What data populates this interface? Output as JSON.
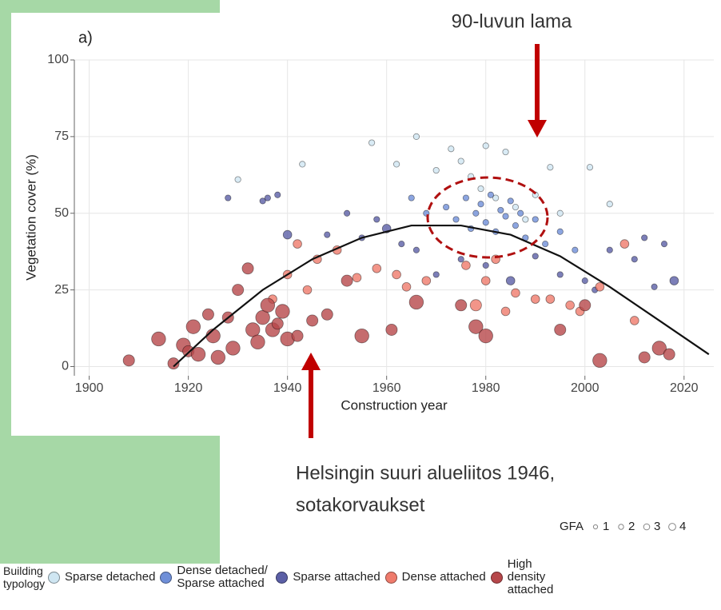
{
  "chart_data": {
    "type": "scatter",
    "panel_label": "a)",
    "xlabel": "Construction year",
    "ylabel": "Vegetation cover (%)",
    "xlim": [
      1897,
      2026
    ],
    "ylim": [
      -3,
      100
    ],
    "xticks": [
      1900,
      1920,
      1940,
      1960,
      1980,
      2000,
      2020
    ],
    "yticks": [
      0,
      25,
      50,
      75,
      100
    ],
    "grid": true,
    "annotations": [
      "90-luvun lama",
      [
        "Helsingin suuri alueliitos 1946,",
        "sotakorvaukset"
      ]
    ],
    "legend_title": [
      "Building",
      "typology"
    ],
    "size_legend": {
      "title": "GFA",
      "values": [
        1,
        2,
        3,
        4
      ]
    },
    "trend": {
      "x": [
        1917,
        1925,
        1935,
        1945,
        1955,
        1965,
        1975,
        1985,
        1995,
        2005,
        2015,
        2025
      ],
      "y": [
        0,
        12,
        25,
        35,
        42,
        46,
        46,
        43,
        36,
        26,
        15,
        4
      ]
    },
    "series": [
      {
        "name": "Sparse detached",
        "color": "#cfe6f2",
        "x": [
          1957,
          1962,
          1966,
          1970,
          1973,
          1975,
          1977,
          1979,
          1980,
          1982,
          1984,
          1986,
          1988,
          1990,
          1993,
          1995,
          2001,
          2005,
          1943,
          1930
        ],
        "y": [
          73,
          66,
          75,
          64,
          71,
          67,
          62,
          58,
          72,
          55,
          70,
          52,
          48,
          56,
          65,
          50,
          65,
          53,
          66,
          61
        ],
        "size": [
          1,
          1,
          1,
          1,
          1,
          1,
          1,
          1,
          1,
          1,
          1,
          1,
          1,
          1,
          1,
          1,
          1,
          1,
          1,
          1
        ]
      },
      {
        "name": "Dense detached/ Sparse attached",
        "color": "#6f8fd8",
        "x": [
          1972,
          1974,
          1976,
          1977,
          1978,
          1979,
          1980,
          1981,
          1982,
          1983,
          1984,
          1985,
          1986,
          1987,
          1988,
          1990,
          1992,
          1995,
          1998,
          1965,
          1968
        ],
        "y": [
          52,
          48,
          55,
          45,
          50,
          53,
          47,
          56,
          44,
          51,
          49,
          54,
          46,
          50,
          42,
          48,
          40,
          44,
          38,
          55,
          50
        ],
        "size": [
          1,
          1,
          1,
          1,
          1,
          1,
          1,
          1,
          1,
          1,
          1,
          1,
          1,
          1,
          1,
          1,
          1,
          1,
          1,
          1,
          1
        ]
      },
      {
        "name": "Sparse attached",
        "color": "#5b5fa6",
        "x": [
          1928,
          1935,
          1936,
          1938,
          1940,
          1948,
          1952,
          1955,
          1958,
          1960,
          1963,
          1966,
          1970,
          1975,
          1980,
          1985,
          1990,
          1995,
          2000,
          2002,
          2005,
          2010,
          2012,
          2014,
          2016,
          2018
        ],
        "y": [
          55,
          54,
          55,
          56,
          43,
          43,
          50,
          42,
          48,
          45,
          40,
          38,
          30,
          35,
          33,
          28,
          36,
          30,
          28,
          25,
          38,
          35,
          42,
          26,
          40,
          28
        ],
        "size": [
          1,
          1,
          1,
          1,
          2,
          1,
          1,
          1,
          1,
          2,
          1,
          1,
          1,
          1,
          1,
          2,
          1,
          1,
          1,
          1,
          1,
          1,
          1,
          1,
          1,
          2
        ]
      },
      {
        "name": "Dense attached",
        "color": "#ef7b6c",
        "x": [
          1937,
          1940,
          1942,
          1944,
          1946,
          1950,
          1954,
          1958,
          1962,
          1964,
          1968,
          1976,
          1978,
          1980,
          1982,
          1984,
          1986,
          1990,
          1993,
          1997,
          1999,
          2003,
          2008,
          2010
        ],
        "y": [
          22,
          30,
          40,
          25,
          35,
          38,
          29,
          32,
          30,
          26,
          28,
          33,
          20,
          28,
          35,
          18,
          24,
          22,
          22,
          20,
          18,
          26,
          40,
          15
        ],
        "size": [
          2,
          2,
          2,
          2,
          2,
          2,
          2,
          2,
          2,
          2,
          2,
          2,
          3,
          2,
          2,
          2,
          2,
          2,
          2,
          2,
          2,
          2,
          2,
          2
        ]
      },
      {
        "name": "High density attached",
        "color": "#b6474a",
        "x": [
          1908,
          1914,
          1917,
          1919,
          1920,
          1921,
          1922,
          1924,
          1925,
          1926,
          1928,
          1929,
          1930,
          1932,
          1933,
          1934,
          1935,
          1936,
          1937,
          1938,
          1939,
          1940,
          1942,
          1945,
          1948,
          1952,
          1955,
          1961,
          1966,
          1975,
          1978,
          1980,
          1995,
          2000,
          2003,
          2012,
          2015,
          2017
        ],
        "y": [
          2,
          9,
          1,
          7,
          5,
          13,
          4,
          17,
          10,
          3,
          16,
          6,
          25,
          32,
          12,
          8,
          16,
          20,
          12,
          14,
          18,
          9,
          10,
          15,
          17,
          28,
          10,
          12,
          21,
          20,
          13,
          10,
          12,
          20,
          2,
          3,
          6,
          4
        ],
        "size": [
          3,
          4,
          3,
          4,
          3,
          4,
          4,
          3,
          4,
          4,
          3,
          4,
          3,
          3,
          4,
          4,
          4,
          4,
          4,
          3,
          4,
          4,
          3,
          3,
          3,
          3,
          4,
          3,
          4,
          3,
          4,
          4,
          3,
          3,
          4,
          3,
          4,
          3
        ]
      }
    ]
  }
}
